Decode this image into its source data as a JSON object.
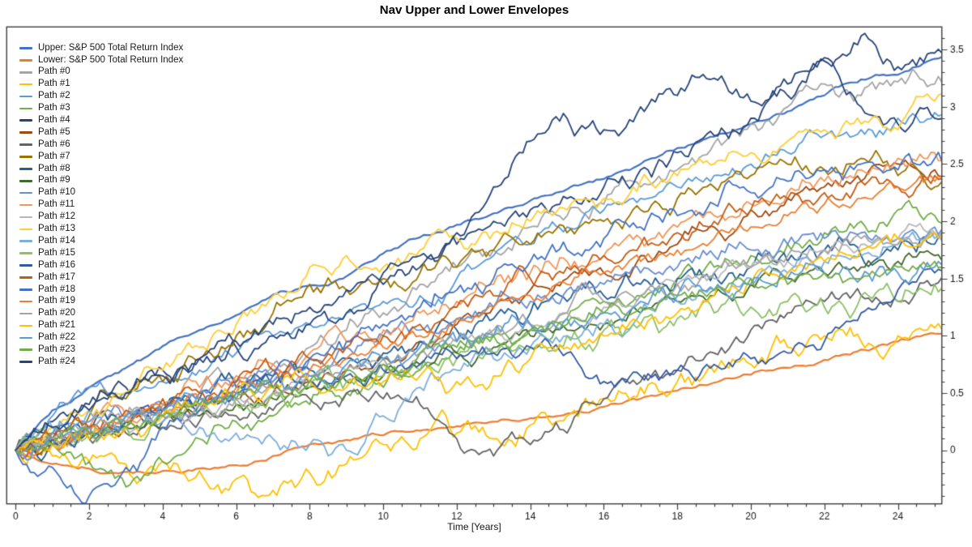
{
  "chart_data": {
    "type": "line",
    "title": "Nav Upper and Lower Envelopes",
    "xlabel": "Time [Years]",
    "ylabel": "",
    "grid": false,
    "legend_position": "top-left-inside",
    "y_axis_side": "right",
    "xlim": [
      -0.25,
      25.2
    ],
    "ylim": [
      -0.47,
      3.7
    ],
    "x_major_ticks": [
      0,
      2,
      4,
      6,
      8,
      10,
      12,
      14,
      16,
      18,
      20,
      22,
      24
    ],
    "x_minor_step": 0.5,
    "y_major_ticks": [
      0,
      0.5,
      1,
      1.5,
      2,
      2.5,
      3,
      3.5
    ],
    "y_minor_step": 0.1,
    "x": [
      0,
      1,
      2,
      3,
      4,
      5,
      6,
      7,
      8,
      9,
      10,
      11,
      12,
      13,
      14,
      15,
      16,
      17,
      18,
      19,
      20,
      21,
      22,
      23,
      24,
      25
    ],
    "series": [
      {
        "name": "Upper: S&P 500 Total Return Index",
        "color": "#4472C4",
        "role": "envelope_upper",
        "y": [
          0,
          0.35,
          0.55,
          0.72,
          0.91,
          1.05,
          1.18,
          1.36,
          1.44,
          1.52,
          1.72,
          1.86,
          1.97,
          2.07,
          2.18,
          2.28,
          2.37,
          2.5,
          2.64,
          2.74,
          2.85,
          2.96,
          3.1,
          3.24,
          3.28,
          3.42
        ]
      },
      {
        "name": "Lower: S&P 500 Total Return Index",
        "color": "#ED7D31",
        "role": "envelope_lower",
        "y": [
          0,
          -0.12,
          -0.16,
          -0.19,
          -0.18,
          -0.16,
          -0.13,
          -0.05,
          0.05,
          0.09,
          0.13,
          0.17,
          0.21,
          0.25,
          0.28,
          0.32,
          0.38,
          0.45,
          0.52,
          0.59,
          0.66,
          0.72,
          0.79,
          0.88,
          0.95,
          1.02
        ]
      },
      {
        "name": "Path #0",
        "color": "#A5A5A5",
        "role": "path",
        "y": [
          0,
          0.1,
          0.2,
          0.3,
          0.35,
          0.5,
          0.6,
          0.75,
          0.9,
          1.05,
          1.2,
          1.45,
          1.6,
          1.75,
          1.95,
          2.05,
          2.15,
          2.3,
          2.45,
          2.68,
          2.85,
          3.0,
          3.2,
          3.1,
          3.22,
          3.2
        ]
      },
      {
        "name": "Path #1",
        "color": "#FFC000",
        "role": "path",
        "y": [
          0,
          -0.05,
          -0.1,
          -0.12,
          -0.1,
          -0.18,
          -0.25,
          -0.35,
          -0.2,
          -0.12,
          0.05,
          0.1,
          0.15,
          0.1,
          0.22,
          0.3,
          0.45,
          0.55,
          0.6,
          0.68,
          0.75,
          0.9,
          1.0,
          0.95,
          1.0,
          1.07
        ]
      },
      {
        "name": "Path #2",
        "color": "#5B9BD5",
        "role": "path",
        "y": [
          0,
          0.3,
          0.55,
          0.5,
          0.6,
          0.7,
          0.85,
          1.0,
          1.1,
          1.2,
          1.3,
          1.35,
          1.5,
          1.7,
          1.8,
          1.95,
          2.1,
          2.2,
          2.3,
          2.4,
          2.5,
          2.6,
          2.75,
          2.8,
          2.9,
          2.95
        ]
      },
      {
        "name": "Path #3",
        "color": "#70AD47",
        "role": "path",
        "y": [
          0,
          0.05,
          -0.1,
          -0.32,
          -0.1,
          0.1,
          0.25,
          0.3,
          0.4,
          0.5,
          0.55,
          0.7,
          0.85,
          1.0,
          1.05,
          1.15,
          1.3,
          1.35,
          1.5,
          1.6,
          1.7,
          1.8,
          1.9,
          2.0,
          2.1,
          2.05
        ]
      },
      {
        "name": "Path #4",
        "color": "#264478",
        "role": "path",
        "y": [
          0,
          0.25,
          0.4,
          0.55,
          0.7,
          0.8,
          0.9,
          1.0,
          1.1,
          1.2,
          1.45,
          1.6,
          1.8,
          2.0,
          2.1,
          2.2,
          2.3,
          2.45,
          2.6,
          2.75,
          2.9,
          3.1,
          3.43,
          3.0,
          2.85,
          2.9
        ]
      },
      {
        "name": "Path #5",
        "color": "#9E480E",
        "role": "path",
        "y": [
          0,
          0.1,
          0.15,
          0.2,
          0.3,
          0.35,
          0.45,
          0.5,
          0.6,
          0.7,
          0.8,
          0.95,
          1.1,
          1.25,
          1.4,
          1.5,
          1.55,
          1.7,
          1.8,
          1.95,
          2.1,
          2.2,
          2.3,
          2.35,
          2.5,
          2.45
        ]
      },
      {
        "name": "Path #6",
        "color": "#636363",
        "role": "path",
        "y": [
          0,
          0.05,
          0.1,
          0.15,
          0.2,
          0.25,
          0.3,
          0.35,
          0.45,
          0.5,
          0.45,
          0.4,
          0.1,
          -0.05,
          0.05,
          0.15,
          0.45,
          0.6,
          0.7,
          0.85,
          1.05,
          1.2,
          1.3,
          1.35,
          1.3,
          1.45
        ]
      },
      {
        "name": "Path #7",
        "color": "#997300",
        "role": "path",
        "y": [
          0,
          0.15,
          0.3,
          0.45,
          0.6,
          0.8,
          1.0,
          1.2,
          1.45,
          1.4,
          1.5,
          1.55,
          1.6,
          1.75,
          1.8,
          1.9,
          2.0,
          2.1,
          2.2,
          2.3,
          2.4,
          2.5,
          2.45,
          2.55,
          2.4,
          2.3
        ]
      },
      {
        "name": "Path #8",
        "color": "#255E91",
        "role": "path",
        "y": [
          0,
          0.1,
          0.2,
          0.25,
          0.35,
          0.45,
          0.55,
          0.65,
          0.7,
          0.8,
          0.85,
          0.95,
          1.05,
          1.15,
          1.2,
          1.3,
          1.35,
          1.45,
          1.5,
          1.55,
          1.6,
          1.65,
          1.75,
          1.7,
          1.75,
          1.8
        ]
      },
      {
        "name": "Path #9",
        "color": "#43682B",
        "role": "path",
        "y": [
          0,
          0.05,
          0.1,
          0.2,
          0.25,
          0.3,
          0.4,
          0.45,
          0.55,
          0.6,
          0.65,
          0.75,
          0.85,
          0.9,
          1.0,
          1.05,
          1.1,
          1.2,
          1.3,
          1.35,
          1.45,
          1.5,
          1.55,
          1.6,
          1.65,
          1.7
        ]
      },
      {
        "name": "Path #10",
        "color": "#698ED0",
        "role": "path",
        "y": [
          0,
          0.15,
          0.25,
          0.3,
          0.4,
          0.5,
          0.6,
          0.7,
          0.8,
          0.9,
          1.0,
          1.05,
          1.15,
          1.25,
          1.3,
          1.4,
          1.45,
          1.55,
          1.6,
          1.7,
          1.75,
          1.8,
          1.85,
          1.9,
          1.85,
          1.95
        ]
      },
      {
        "name": "Path #11",
        "color": "#F1975A",
        "role": "path",
        "y": [
          0,
          0.1,
          0.2,
          0.3,
          0.4,
          0.55,
          0.65,
          0.75,
          0.85,
          0.95,
          1.05,
          1.2,
          1.3,
          1.45,
          1.55,
          1.65,
          1.7,
          1.85,
          1.95,
          2.05,
          2.15,
          2.25,
          2.35,
          2.45,
          2.55,
          2.6
        ]
      },
      {
        "name": "Path #12",
        "color": "#B7B7B7",
        "role": "path",
        "y": [
          0,
          0.05,
          0.15,
          0.2,
          0.3,
          0.35,
          0.45,
          0.5,
          0.6,
          0.7,
          0.75,
          0.85,
          0.95,
          1.0,
          1.1,
          1.2,
          1.25,
          1.35,
          1.45,
          1.5,
          1.6,
          1.65,
          1.75,
          1.8,
          1.85,
          1.9
        ]
      },
      {
        "name": "Path #13",
        "color": "#FFCD33",
        "role": "path",
        "y": [
          0,
          0.2,
          0.35,
          0.5,
          0.7,
          0.9,
          1.1,
          1.35,
          1.6,
          1.7,
          1.6,
          1.75,
          1.85,
          1.9,
          2.0,
          2.1,
          2.2,
          2.35,
          2.4,
          2.5,
          2.6,
          2.7,
          2.8,
          2.85,
          2.8,
          3.05
        ]
      },
      {
        "name": "Path #14",
        "color": "#7CAFDD",
        "role": "path",
        "y": [
          0,
          0.2,
          0.35,
          0.3,
          0.25,
          0.2,
          0.15,
          0.1,
          0.05,
          0.0,
          0.3,
          0.55,
          0.7,
          0.8,
          0.9,
          1.0,
          1.1,
          1.2,
          1.3,
          1.4,
          1.5,
          1.55,
          1.65,
          1.7,
          1.8,
          1.85
        ]
      },
      {
        "name": "Path #15",
        "color": "#8CC168",
        "role": "path",
        "y": [
          0,
          0.1,
          0.15,
          0.2,
          0.3,
          0.35,
          0.4,
          0.5,
          0.55,
          0.6,
          0.65,
          0.7,
          0.8,
          0.85,
          0.9,
          1.0,
          1.05,
          1.1,
          1.15,
          1.2,
          1.25,
          1.3,
          1.25,
          1.35,
          1.3,
          1.45
        ]
      },
      {
        "name": "Path #16",
        "color": "#335AA1",
        "role": "path",
        "y": [
          0,
          0.1,
          0.15,
          0.25,
          0.35,
          0.4,
          0.5,
          0.55,
          0.6,
          0.65,
          0.7,
          0.75,
          0.8,
          0.85,
          0.9,
          0.85,
          0.6,
          0.65,
          0.7,
          0.75,
          0.8,
          0.85,
          0.95,
          1.2,
          1.4,
          1.55
        ]
      },
      {
        "name": "Path #17",
        "color": "#C55A11",
        "role": "path",
        "y": [
          0,
          0.1,
          0.2,
          0.35,
          0.45,
          0.5,
          0.6,
          0.7,
          0.8,
          0.9,
          1.0,
          1.1,
          1.25,
          1.35,
          1.5,
          1.6,
          1.7,
          1.8,
          1.9,
          2.0,
          2.1,
          2.2,
          2.25,
          2.35,
          2.3,
          2.4
        ]
      },
      {
        "name": "Path #18",
        "color": "#4472C4",
        "role": "path",
        "y": [
          0,
          -0.15,
          -0.4,
          -0.15,
          0.2,
          0.35,
          0.5,
          0.65,
          0.8,
          0.95,
          1.1,
          1.25,
          1.4,
          1.5,
          1.65,
          1.75,
          1.85,
          1.95,
          2.05,
          2.15,
          2.25,
          2.35,
          2.45,
          2.5,
          2.45,
          2.55
        ]
      },
      {
        "name": "Path #19",
        "color": "#ED7D31",
        "role": "path",
        "y": [
          0,
          0.05,
          0.15,
          0.25,
          0.35,
          0.45,
          0.55,
          0.6,
          0.7,
          0.8,
          0.9,
          1.0,
          1.15,
          1.25,
          1.35,
          1.45,
          1.55,
          1.65,
          1.75,
          1.85,
          1.95,
          2.05,
          2.15,
          2.2,
          2.3,
          2.35
        ]
      },
      {
        "name": "Path #20",
        "color": "#A5A5A5",
        "role": "path",
        "y": [
          0,
          0.1,
          0.15,
          0.25,
          0.3,
          0.4,
          0.45,
          0.55,
          0.65,
          0.7,
          0.8,
          0.85,
          0.95,
          1.05,
          1.1,
          1.2,
          1.3,
          1.35,
          1.45,
          1.55,
          1.6,
          1.7,
          1.75,
          1.85,
          1.8,
          1.9
        ]
      },
      {
        "name": "Path #21",
        "color": "#FFC000",
        "role": "path",
        "y": [
          0,
          0.05,
          0.1,
          0.2,
          0.3,
          0.4,
          0.5,
          0.55,
          0.6,
          0.55,
          0.6,
          0.65,
          0.6,
          0.65,
          0.8,
          0.9,
          1.0,
          1.1,
          1.2,
          1.35,
          1.45,
          1.55,
          1.65,
          1.75,
          1.85,
          1.9
        ]
      },
      {
        "name": "Path #22",
        "color": "#5B9BD5",
        "role": "path",
        "y": [
          0,
          0.15,
          0.2,
          0.3,
          0.35,
          0.45,
          0.5,
          0.6,
          0.65,
          0.75,
          0.8,
          0.9,
          0.95,
          1.0,
          1.1,
          1.15,
          1.2,
          1.3,
          1.35,
          1.4,
          1.45,
          1.5,
          1.55,
          1.5,
          1.55,
          1.6
        ]
      },
      {
        "name": "Path #23",
        "color": "#70AD47",
        "role": "path",
        "y": [
          0,
          0.05,
          0.15,
          0.2,
          0.3,
          0.4,
          0.45,
          0.55,
          0.6,
          0.7,
          0.75,
          0.85,
          0.9,
          1.0,
          1.05,
          1.1,
          1.2,
          1.25,
          1.35,
          1.4,
          1.5,
          1.45,
          1.55,
          1.5,
          1.6,
          1.65
        ]
      },
      {
        "name": "Path #24",
        "color": "#264478",
        "role": "path",
        "y": [
          0,
          0.2,
          0.35,
          0.5,
          0.65,
          0.8,
          0.95,
          1.1,
          1.25,
          1.4,
          1.55,
          1.7,
          1.9,
          2.3,
          2.7,
          2.9,
          2.8,
          3.0,
          3.1,
          3.25,
          3.05,
          3.2,
          3.4,
          3.62,
          3.35,
          3.47
        ]
      }
    ],
    "colors": {
      "axis": "#3d3d3d",
      "tick_label": "#161616",
      "background": "#ffffff"
    }
  }
}
